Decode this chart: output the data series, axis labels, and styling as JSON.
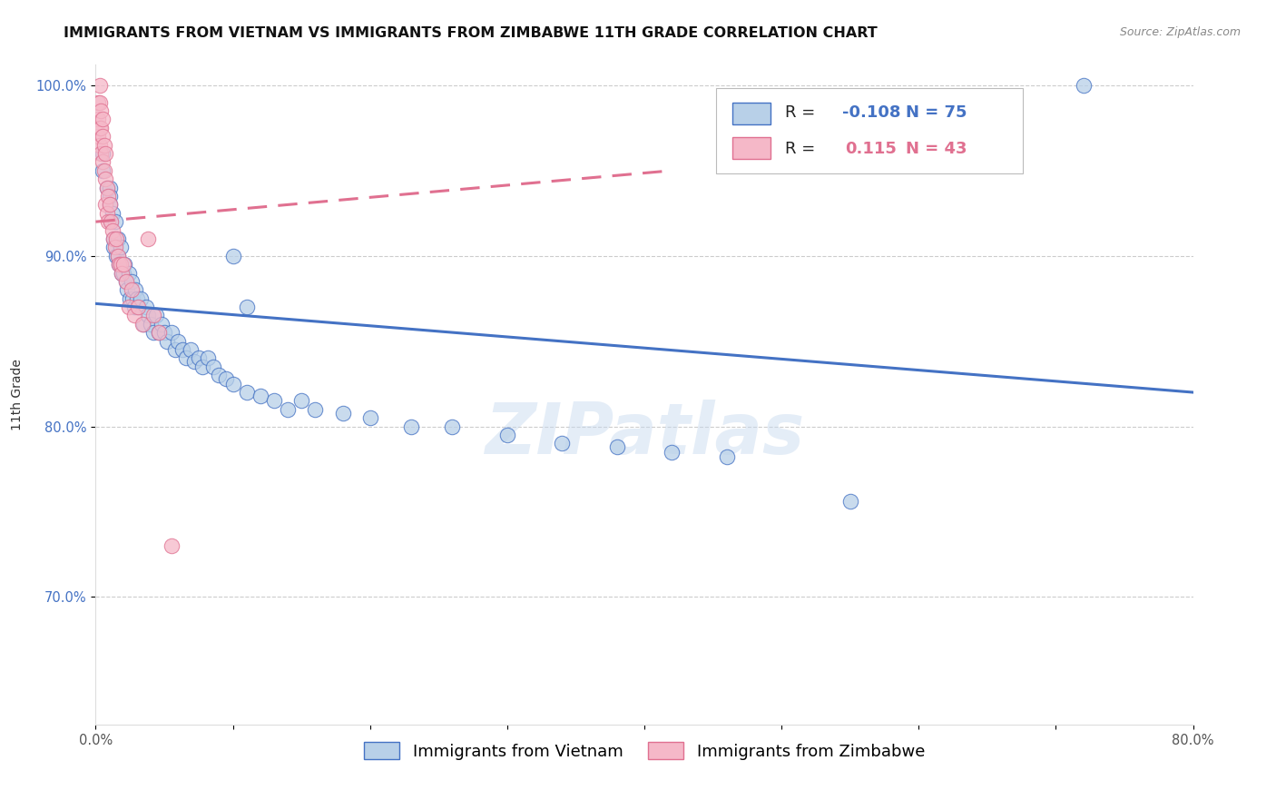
{
  "title": "IMMIGRANTS FROM VIETNAM VS IMMIGRANTS FROM ZIMBABWE 11TH GRADE CORRELATION CHART",
  "source": "Source: ZipAtlas.com",
  "ylabel": "11th Grade",
  "watermark": "ZIPatlas",
  "legend_vietnam": "Immigrants from Vietnam",
  "legend_zimbabwe": "Immigrants from Zimbabwe",
  "R_vietnam": -0.108,
  "N_vietnam": 75,
  "R_zimbabwe": 0.115,
  "N_zimbabwe": 43,
  "color_vietnam": "#b8d0e8",
  "color_zimbabwe": "#f5b8c8",
  "trendline_vietnam": "#4472c4",
  "trendline_zimbabwe": "#e07090",
  "xmin": 0.0,
  "xmax": 0.8,
  "ymin": 0.625,
  "ymax": 1.012,
  "yticks": [
    1.0,
    0.9,
    0.8,
    0.7
  ],
  "ytick_labels": [
    "100.0%",
    "90.0%",
    "80.0%",
    "70.0%"
  ],
  "xtick_labels": [
    "0.0%",
    "",
    "",
    "",
    "",
    "",
    "",
    "",
    "80.0%"
  ],
  "vietnam_x": [
    0.72,
    0.005,
    0.005,
    0.008,
    0.01,
    0.01,
    0.01,
    0.011,
    0.012,
    0.013,
    0.013,
    0.014,
    0.015,
    0.015,
    0.016,
    0.016,
    0.017,
    0.018,
    0.018,
    0.019,
    0.02,
    0.021,
    0.022,
    0.023,
    0.024,
    0.025,
    0.026,
    0.027,
    0.028,
    0.029,
    0.03,
    0.031,
    0.033,
    0.035,
    0.037,
    0.038,
    0.04,
    0.042,
    0.044,
    0.046,
    0.048,
    0.05,
    0.052,
    0.055,
    0.058,
    0.06,
    0.063,
    0.066,
    0.069,
    0.072,
    0.075,
    0.078,
    0.082,
    0.086,
    0.09,
    0.095,
    0.1,
    0.11,
    0.12,
    0.13,
    0.14,
    0.15,
    0.16,
    0.18,
    0.2,
    0.23,
    0.26,
    0.3,
    0.34,
    0.38,
    0.42,
    0.46,
    0.11,
    0.55,
    0.1
  ],
  "vietnam_y": [
    1.0,
    0.96,
    0.95,
    0.94,
    0.94,
    0.935,
    0.93,
    0.92,
    0.925,
    0.91,
    0.905,
    0.92,
    0.91,
    0.9,
    0.91,
    0.9,
    0.895,
    0.905,
    0.895,
    0.89,
    0.89,
    0.895,
    0.885,
    0.88,
    0.89,
    0.875,
    0.885,
    0.875,
    0.87,
    0.88,
    0.875,
    0.87,
    0.875,
    0.86,
    0.87,
    0.865,
    0.86,
    0.855,
    0.865,
    0.855,
    0.86,
    0.855,
    0.85,
    0.855,
    0.845,
    0.85,
    0.845,
    0.84,
    0.845,
    0.838,
    0.84,
    0.835,
    0.84,
    0.835,
    0.83,
    0.828,
    0.825,
    0.82,
    0.818,
    0.815,
    0.81,
    0.815,
    0.81,
    0.808,
    0.805,
    0.8,
    0.8,
    0.795,
    0.79,
    0.788,
    0.785,
    0.782,
    0.87,
    0.756,
    0.9
  ],
  "zimbabwe_x": [
    0.002,
    0.002,
    0.002,
    0.003,
    0.003,
    0.003,
    0.003,
    0.004,
    0.004,
    0.004,
    0.005,
    0.005,
    0.005,
    0.006,
    0.006,
    0.007,
    0.007,
    0.007,
    0.008,
    0.008,
    0.009,
    0.009,
    0.01,
    0.011,
    0.012,
    0.013,
    0.014,
    0.015,
    0.016,
    0.017,
    0.018,
    0.019,
    0.02,
    0.022,
    0.024,
    0.026,
    0.028,
    0.031,
    0.034,
    0.038,
    0.042,
    0.046,
    0.055
  ],
  "zimbabwe_y": [
    0.99,
    0.98,
    0.97,
    1.0,
    0.99,
    0.975,
    0.965,
    0.985,
    0.975,
    0.96,
    0.98,
    0.97,
    0.955,
    0.965,
    0.95,
    0.96,
    0.945,
    0.93,
    0.94,
    0.925,
    0.935,
    0.92,
    0.93,
    0.92,
    0.915,
    0.91,
    0.905,
    0.91,
    0.9,
    0.895,
    0.895,
    0.89,
    0.895,
    0.885,
    0.87,
    0.88,
    0.865,
    0.87,
    0.86,
    0.91,
    0.865,
    0.855,
    0.73
  ],
  "trendline_vietnam_x0": 0.0,
  "trendline_vietnam_x1": 0.8,
  "trendline_vietnam_y0": 0.872,
  "trendline_vietnam_y1": 0.82,
  "trendline_zimbabwe_x0": 0.0,
  "trendline_zimbabwe_x1": 0.42,
  "trendline_zimbabwe_y0": 0.92,
  "trendline_zimbabwe_y1": 0.95,
  "title_fontsize": 11.5,
  "source_fontsize": 9,
  "axis_label_fontsize": 10,
  "tick_fontsize": 10.5,
  "legend_fontsize": 13,
  "background_color": "#ffffff",
  "grid_color": "#cccccc"
}
